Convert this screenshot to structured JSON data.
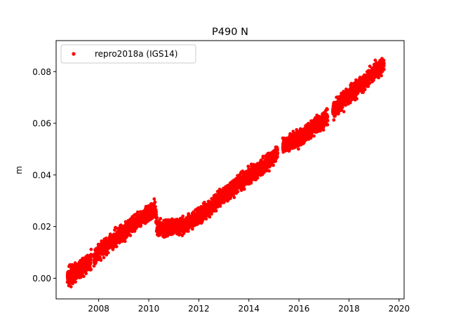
{
  "chart_data": {
    "type": "scatter",
    "title": "P490 N",
    "xlabel": "",
    "ylabel": "m",
    "xlim": [
      2006.3,
      2020.2
    ],
    "ylim": [
      -0.008,
      0.092
    ],
    "xticks": [
      2008,
      2010,
      2012,
      2014,
      2016,
      2018,
      2020
    ],
    "xtick_labels": [
      "2008",
      "2010",
      "2012",
      "2014",
      "2016",
      "2018",
      "2020"
    ],
    "yticks": [
      0.0,
      0.02,
      0.04,
      0.06,
      0.08
    ],
    "ytick_labels": [
      "0.00",
      "0.02",
      "0.04",
      "0.06",
      "0.08"
    ],
    "grid": false,
    "legend_position": "top-left",
    "series": [
      {
        "name": "repro2018a (IGS14)",
        "color": "#ff0000",
        "marker": "circle",
        "trend_points": [
          {
            "x": 2006.75,
            "y": 0.0
          },
          {
            "x": 2007.0,
            "y": 0.002
          },
          {
            "x": 2007.5,
            "y": 0.005
          },
          {
            "x": 2008.0,
            "y": 0.01
          },
          {
            "x": 2008.5,
            "y": 0.014
          },
          {
            "x": 2009.0,
            "y": 0.018
          },
          {
            "x": 2009.5,
            "y": 0.022
          },
          {
            "x": 2010.0,
            "y": 0.025
          },
          {
            "x": 2010.25,
            "y": 0.027
          },
          {
            "x": 2010.35,
            "y": 0.019
          },
          {
            "x": 2011.0,
            "y": 0.02
          },
          {
            "x": 2011.5,
            "y": 0.021
          },
          {
            "x": 2012.0,
            "y": 0.024
          },
          {
            "x": 2012.5,
            "y": 0.028
          },
          {
            "x": 2013.0,
            "y": 0.032
          },
          {
            "x": 2013.5,
            "y": 0.036
          },
          {
            "x": 2014.0,
            "y": 0.04
          },
          {
            "x": 2014.5,
            "y": 0.043
          },
          {
            "x": 2015.0,
            "y": 0.047
          },
          {
            "x": 2015.4,
            "y": 0.052
          },
          {
            "x": 2016.0,
            "y": 0.054
          },
          {
            "x": 2016.5,
            "y": 0.058
          },
          {
            "x": 2017.0,
            "y": 0.061
          },
          {
            "x": 2017.5,
            "y": 0.066
          },
          {
            "x": 2018.0,
            "y": 0.071
          },
          {
            "x": 2018.5,
            "y": 0.075
          },
          {
            "x": 2019.0,
            "y": 0.08
          },
          {
            "x": 2019.4,
            "y": 0.083
          }
        ],
        "scatter_amplitude": 0.0025,
        "data_gaps": [
          {
            "start": 2007.7,
            "end": 2007.8
          },
          {
            "start": 2015.15,
            "end": 2015.35
          },
          {
            "start": 2017.15,
            "end": 2017.35
          }
        ]
      }
    ]
  }
}
